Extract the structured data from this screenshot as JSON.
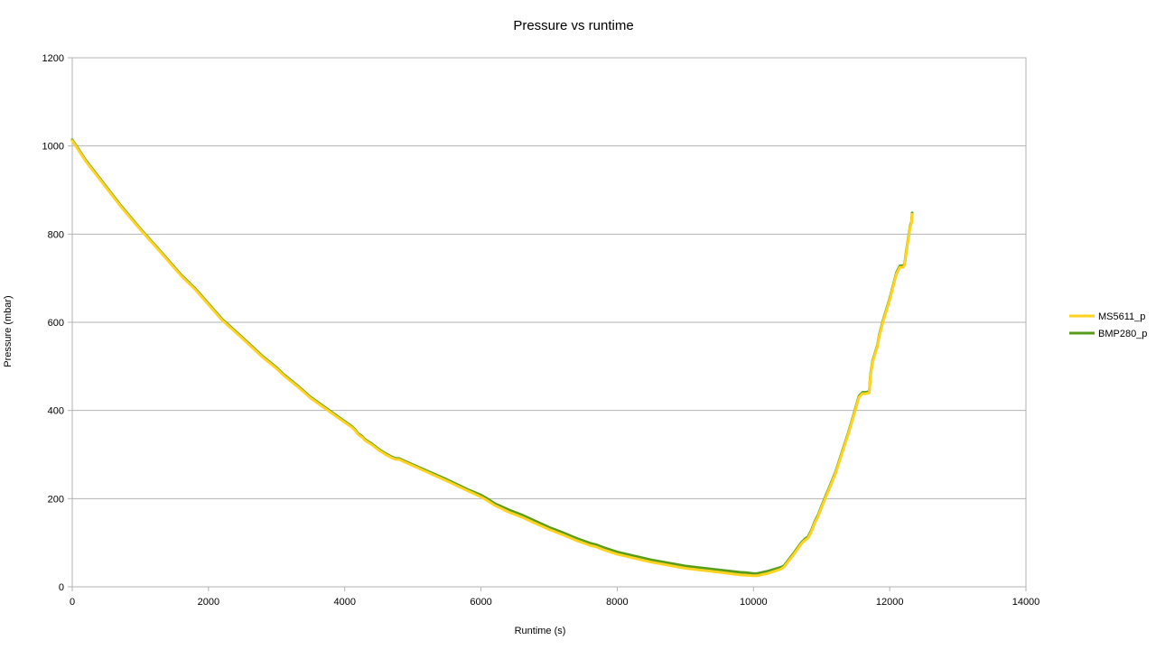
{
  "chart_data": {
    "type": "line",
    "title": "Pressure vs runtime",
    "xlabel": "Runtime (s)",
    "ylabel": "Pressure (mbar)",
    "xlim": [
      0,
      14000
    ],
    "ylim": [
      0,
      1200
    ],
    "xticks": [
      0,
      2000,
      4000,
      6000,
      8000,
      10000,
      12000,
      14000
    ],
    "yticks": [
      0,
      200,
      400,
      600,
      800,
      1000,
      1200
    ],
    "grid": "horizontal",
    "legend_position": "right",
    "series": [
      {
        "name": "MS5611_p",
        "color": "#ffd320",
        "x": [
          0,
          200,
          400,
          700,
          1000,
          1300,
          1600,
          1800,
          2000,
          2200,
          2500,
          2800,
          3000,
          3100,
          3300,
          3500,
          3800,
          4000,
          4100,
          4150,
          4200,
          4250,
          4300,
          4400,
          4500,
          4600,
          4700,
          4750,
          4800,
          4850,
          5000,
          5500,
          5800,
          6000,
          6100,
          6200,
          6400,
          6600,
          6800,
          7000,
          7200,
          7400,
          7600,
          7700,
          7800,
          8000,
          8500,
          9000,
          9500,
          9800,
          9900,
          10000,
          10050,
          10200,
          10400,
          10450,
          10500,
          10600,
          10700,
          10750,
          10800,
          10850,
          10900,
          10950,
          11000,
          11200,
          11400,
          11550,
          11600,
          11650,
          11700,
          11720,
          11750,
          11800,
          11820,
          11850,
          11900,
          12000,
          12100,
          12150,
          12200,
          12220,
          12250,
          12300,
          12320,
          12330
        ],
        "y": [
          1012,
          965,
          925,
          865,
          810,
          758,
          705,
          675,
          640,
          605,
          563,
          520,
          495,
          480,
          455,
          428,
          395,
          373,
          362,
          355,
          345,
          340,
          332,
          322,
          310,
          300,
          292,
          289,
          289,
          285,
          275,
          240,
          218,
          204,
          195,
          185,
          170,
          158,
          144,
          130,
          118,
          105,
          94,
          90,
          84,
          74,
          56,
          42,
          33,
          27,
          26,
          25,
          25,
          30,
          40,
          45,
          55,
          75,
          97,
          105,
          110,
          125,
          145,
          160,
          180,
          255,
          350,
          430,
          438,
          438,
          440,
          480,
          510,
          535,
          545,
          570,
          600,
          650,
          710,
          725,
          725,
          730,
          765,
          815,
          825,
          845
        ]
      },
      {
        "name": "BMP280_p",
        "color": "#579d1c",
        "x": [
          0,
          200,
          400,
          700,
          1000,
          1300,
          1600,
          1800,
          2000,
          2200,
          2500,
          2800,
          3000,
          3100,
          3300,
          3500,
          3800,
          4000,
          4100,
          4150,
          4200,
          4250,
          4300,
          4400,
          4500,
          4600,
          4700,
          4750,
          4800,
          4850,
          5000,
          5500,
          5800,
          6000,
          6100,
          6200,
          6400,
          6600,
          6800,
          7000,
          7200,
          7400,
          7600,
          7700,
          7800,
          8000,
          8500,
          9000,
          9500,
          9800,
          9900,
          10000,
          10050,
          10200,
          10400,
          10450,
          10500,
          10600,
          10700,
          10750,
          10800,
          10850,
          10900,
          10950,
          11000,
          11200,
          11400,
          11550,
          11600,
          11650,
          11700,
          11720,
          11750,
          11800,
          11820,
          11850,
          11900,
          12000,
          12100,
          12150,
          12200,
          12220,
          12250,
          12300,
          12320,
          12330
        ],
        "y": [
          1014,
          967,
          927,
          867,
          812,
          760,
          707,
          677,
          642,
          607,
          565,
          522,
          497,
          482,
          457,
          430,
          397,
          375,
          364,
          357,
          347,
          342,
          334,
          324,
          312,
          302,
          294,
          291,
          291,
          287,
          277,
          243,
          221,
          208,
          199,
          189,
          175,
          163,
          149,
          135,
          123,
          110,
          99,
          95,
          89,
          79,
          61,
          47,
          38,
          33,
          32,
          30,
          30,
          35,
          44,
          48,
          58,
          78,
          100,
          108,
          113,
          128,
          148,
          163,
          183,
          258,
          353,
          433,
          441,
          441,
          443,
          483,
          513,
          538,
          548,
          573,
          603,
          653,
          713,
          728,
          728,
          733,
          768,
          818,
          828,
          848
        ]
      }
    ]
  }
}
